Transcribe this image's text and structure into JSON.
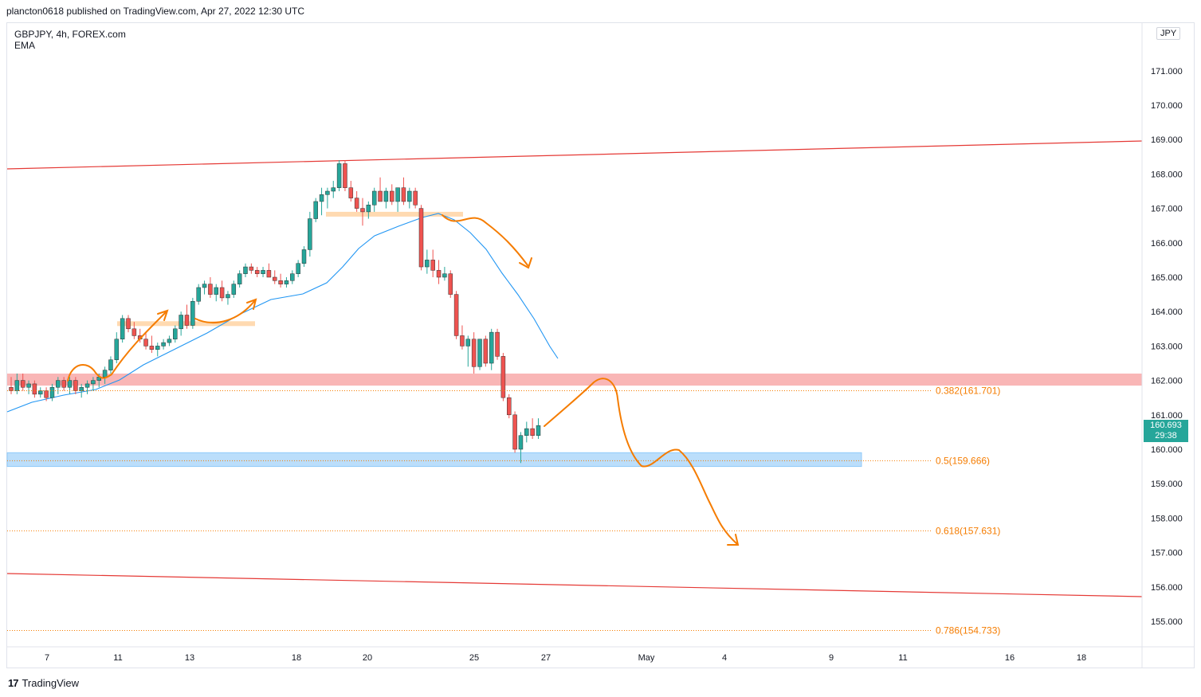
{
  "header": {
    "published": "plancton0618 published on TradingView.com, Apr 27, 2022 12:30 UTC"
  },
  "legend": {
    "symbol": "GBPJPY, 4h, FOREX.com",
    "indicator": "EMA"
  },
  "currency": "JPY",
  "last_price": {
    "value": "160.693",
    "countdown": "29:38"
  },
  "footer": {
    "brand": "TradingView"
  },
  "colors": {
    "up": "#26a69a",
    "down": "#ef5350",
    "ema": "#2196f3",
    "channel": "#e53935",
    "arrows": "#f57c00",
    "supply_zone": "#f8a4a4",
    "demand_zone": "#bbdefb",
    "fib": "#f57c00",
    "orange_box": "#ffd6a8"
  },
  "chart_data": {
    "type": "candlestick",
    "x_tick_labels": [
      "7",
      "11",
      "13",
      "18",
      "20",
      "25",
      "27",
      "May",
      "4",
      "9",
      "11",
      "16",
      "18"
    ],
    "y_tick_labels": [
      "155.000",
      "156.000",
      "157.000",
      "158.000",
      "159.000",
      "160.000",
      "161.000",
      "162.000",
      "163.000",
      "164.000",
      "165.000",
      "166.000",
      "167.000",
      "168.000",
      "169.000",
      "170.000",
      "171.000"
    ],
    "ylim": [
      154.3,
      172.0
    ],
    "fib_levels": [
      {
        "label": "0.382(161.701)",
        "price": 161.701
      },
      {
        "label": "0.5(159.666)",
        "price": 159.666
      },
      {
        "label": "0.618(157.631)",
        "price": 157.631
      },
      {
        "label": "0.786(154.733)",
        "price": 154.733
      }
    ],
    "candles": [
      {
        "o": 161.8,
        "h": 162.1,
        "l": 161.6,
        "c": 161.7
      },
      {
        "o": 161.7,
        "h": 162.2,
        "l": 161.6,
        "c": 162.0
      },
      {
        "o": 162.0,
        "h": 162.2,
        "l": 161.7,
        "c": 161.8
      },
      {
        "o": 161.8,
        "h": 162.0,
        "l": 161.6,
        "c": 161.9
      },
      {
        "o": 161.9,
        "h": 162.0,
        "l": 161.5,
        "c": 161.6
      },
      {
        "o": 161.6,
        "h": 161.8,
        "l": 161.5,
        "c": 161.7
      },
      {
        "o": 161.7,
        "h": 161.8,
        "l": 161.4,
        "c": 161.5
      },
      {
        "o": 161.5,
        "h": 161.9,
        "l": 161.4,
        "c": 161.8
      },
      {
        "o": 161.8,
        "h": 162.1,
        "l": 161.6,
        "c": 162.0
      },
      {
        "o": 162.0,
        "h": 162.1,
        "l": 161.7,
        "c": 161.8
      },
      {
        "o": 161.8,
        "h": 162.1,
        "l": 161.6,
        "c": 162.0
      },
      {
        "o": 162.0,
        "h": 162.1,
        "l": 161.6,
        "c": 161.7
      },
      {
        "o": 161.7,
        "h": 161.9,
        "l": 161.5,
        "c": 161.8
      },
      {
        "o": 161.8,
        "h": 162.0,
        "l": 161.6,
        "c": 161.9
      },
      {
        "o": 161.9,
        "h": 162.1,
        "l": 161.7,
        "c": 162.0
      },
      {
        "o": 162.0,
        "h": 162.2,
        "l": 161.8,
        "c": 162.1
      },
      {
        "o": 162.1,
        "h": 162.4,
        "l": 161.9,
        "c": 162.3
      },
      {
        "o": 162.3,
        "h": 162.7,
        "l": 162.2,
        "c": 162.6
      },
      {
        "o": 162.6,
        "h": 163.4,
        "l": 162.5,
        "c": 163.2
      },
      {
        "o": 163.2,
        "h": 163.9,
        "l": 163.1,
        "c": 163.8
      },
      {
        "o": 163.8,
        "h": 163.9,
        "l": 163.4,
        "c": 163.5
      },
      {
        "o": 163.5,
        "h": 163.7,
        "l": 163.2,
        "c": 163.3
      },
      {
        "o": 163.3,
        "h": 163.5,
        "l": 163.1,
        "c": 163.2
      },
      {
        "o": 163.2,
        "h": 163.4,
        "l": 162.9,
        "c": 163.0
      },
      {
        "o": 163.0,
        "h": 163.3,
        "l": 162.8,
        "c": 162.9
      },
      {
        "o": 162.9,
        "h": 163.1,
        "l": 162.7,
        "c": 163.0
      },
      {
        "o": 163.0,
        "h": 163.2,
        "l": 162.9,
        "c": 163.1
      },
      {
        "o": 163.1,
        "h": 163.3,
        "l": 163.0,
        "c": 163.2
      },
      {
        "o": 163.2,
        "h": 163.6,
        "l": 163.1,
        "c": 163.5
      },
      {
        "o": 163.5,
        "h": 164.0,
        "l": 163.3,
        "c": 163.9
      },
      {
        "o": 163.9,
        "h": 164.2,
        "l": 163.5,
        "c": 163.6
      },
      {
        "o": 163.6,
        "h": 164.4,
        "l": 163.5,
        "c": 164.3
      },
      {
        "o": 164.3,
        "h": 164.8,
        "l": 164.2,
        "c": 164.7
      },
      {
        "o": 164.7,
        "h": 164.9,
        "l": 164.5,
        "c": 164.8
      },
      {
        "o": 164.8,
        "h": 165.0,
        "l": 164.4,
        "c": 164.5
      },
      {
        "o": 164.5,
        "h": 164.8,
        "l": 164.3,
        "c": 164.7
      },
      {
        "o": 164.7,
        "h": 164.9,
        "l": 164.3,
        "c": 164.4
      },
      {
        "o": 164.4,
        "h": 164.6,
        "l": 164.2,
        "c": 164.5
      },
      {
        "o": 164.5,
        "h": 164.9,
        "l": 164.4,
        "c": 164.8
      },
      {
        "o": 164.8,
        "h": 165.2,
        "l": 164.7,
        "c": 165.1
      },
      {
        "o": 165.1,
        "h": 165.4,
        "l": 165.0,
        "c": 165.3
      },
      {
        "o": 165.3,
        "h": 165.4,
        "l": 165.1,
        "c": 165.2
      },
      {
        "o": 165.2,
        "h": 165.3,
        "l": 165.0,
        "c": 165.1
      },
      {
        "o": 165.1,
        "h": 165.3,
        "l": 165.0,
        "c": 165.2
      },
      {
        "o": 165.2,
        "h": 165.4,
        "l": 165.0,
        "c": 165.0
      },
      {
        "o": 165.0,
        "h": 165.2,
        "l": 164.8,
        "c": 164.9
      },
      {
        "o": 164.9,
        "h": 165.1,
        "l": 164.7,
        "c": 164.8
      },
      {
        "o": 164.8,
        "h": 165.0,
        "l": 164.7,
        "c": 164.9
      },
      {
        "o": 164.9,
        "h": 165.2,
        "l": 164.8,
        "c": 165.1
      },
      {
        "o": 165.1,
        "h": 165.5,
        "l": 165.0,
        "c": 165.4
      },
      {
        "o": 165.4,
        "h": 165.9,
        "l": 165.3,
        "c": 165.8
      },
      {
        "o": 165.8,
        "h": 166.9,
        "l": 165.6,
        "c": 166.7
      },
      {
        "o": 166.7,
        "h": 167.3,
        "l": 166.6,
        "c": 167.2
      },
      {
        "o": 167.2,
        "h": 167.6,
        "l": 166.8,
        "c": 167.4
      },
      {
        "o": 167.4,
        "h": 167.6,
        "l": 167.0,
        "c": 167.5
      },
      {
        "o": 167.5,
        "h": 167.8,
        "l": 167.3,
        "c": 167.6
      },
      {
        "o": 167.6,
        "h": 168.4,
        "l": 167.5,
        "c": 168.3
      },
      {
        "o": 168.3,
        "h": 168.4,
        "l": 167.5,
        "c": 167.6
      },
      {
        "o": 167.6,
        "h": 167.8,
        "l": 167.2,
        "c": 167.3
      },
      {
        "o": 167.3,
        "h": 167.5,
        "l": 166.9,
        "c": 167.0
      },
      {
        "o": 167.0,
        "h": 167.3,
        "l": 166.5,
        "c": 166.9
      },
      {
        "o": 166.9,
        "h": 167.2,
        "l": 166.7,
        "c": 167.1
      },
      {
        "o": 167.1,
        "h": 167.6,
        "l": 166.9,
        "c": 167.5
      },
      {
        "o": 167.5,
        "h": 167.9,
        "l": 167.2,
        "c": 167.2
      },
      {
        "o": 167.2,
        "h": 167.6,
        "l": 167.0,
        "c": 167.5
      },
      {
        "o": 167.5,
        "h": 167.7,
        "l": 167.1,
        "c": 167.2
      },
      {
        "o": 167.2,
        "h": 167.6,
        "l": 166.9,
        "c": 167.6
      },
      {
        "o": 167.6,
        "h": 167.9,
        "l": 167.1,
        "c": 167.2
      },
      {
        "o": 167.2,
        "h": 167.6,
        "l": 167.0,
        "c": 167.5
      },
      {
        "o": 167.5,
        "h": 167.6,
        "l": 167.0,
        "c": 167.1
      },
      {
        "o": 167.0,
        "h": 167.1,
        "l": 165.2,
        "c": 165.3
      },
      {
        "o": 165.3,
        "h": 165.8,
        "l": 165.1,
        "c": 165.5
      },
      {
        "o": 165.5,
        "h": 165.8,
        "l": 165.0,
        "c": 165.2
      },
      {
        "o": 165.2,
        "h": 165.5,
        "l": 164.8,
        "c": 165.0
      },
      {
        "o": 165.0,
        "h": 165.3,
        "l": 164.9,
        "c": 165.1
      },
      {
        "o": 165.1,
        "h": 165.2,
        "l": 164.4,
        "c": 164.5
      },
      {
        "o": 164.5,
        "h": 164.6,
        "l": 163.2,
        "c": 163.3
      },
      {
        "o": 163.3,
        "h": 163.6,
        "l": 162.9,
        "c": 163.0
      },
      {
        "o": 163.0,
        "h": 163.3,
        "l": 162.4,
        "c": 163.2
      },
      {
        "o": 163.2,
        "h": 163.4,
        "l": 162.2,
        "c": 162.4
      },
      {
        "o": 162.4,
        "h": 163.2,
        "l": 162.3,
        "c": 163.2
      },
      {
        "o": 163.2,
        "h": 163.3,
        "l": 162.4,
        "c": 162.5
      },
      {
        "o": 162.5,
        "h": 163.5,
        "l": 162.3,
        "c": 163.4
      },
      {
        "o": 163.4,
        "h": 163.5,
        "l": 162.6,
        "c": 162.7
      },
      {
        "o": 162.7,
        "h": 162.8,
        "l": 161.4,
        "c": 161.5
      },
      {
        "o": 161.5,
        "h": 161.6,
        "l": 160.9,
        "c": 161.0
      },
      {
        "o": 161.0,
        "h": 161.1,
        "l": 159.9,
        "c": 160.0
      },
      {
        "o": 160.0,
        "h": 160.5,
        "l": 159.6,
        "c": 160.4
      },
      {
        "o": 160.4,
        "h": 160.8,
        "l": 160.2,
        "c": 160.6
      },
      {
        "o": 160.6,
        "h": 160.9,
        "l": 160.3,
        "c": 160.4
      },
      {
        "o": 160.4,
        "h": 160.9,
        "l": 160.3,
        "c": 160.69
      }
    ]
  }
}
